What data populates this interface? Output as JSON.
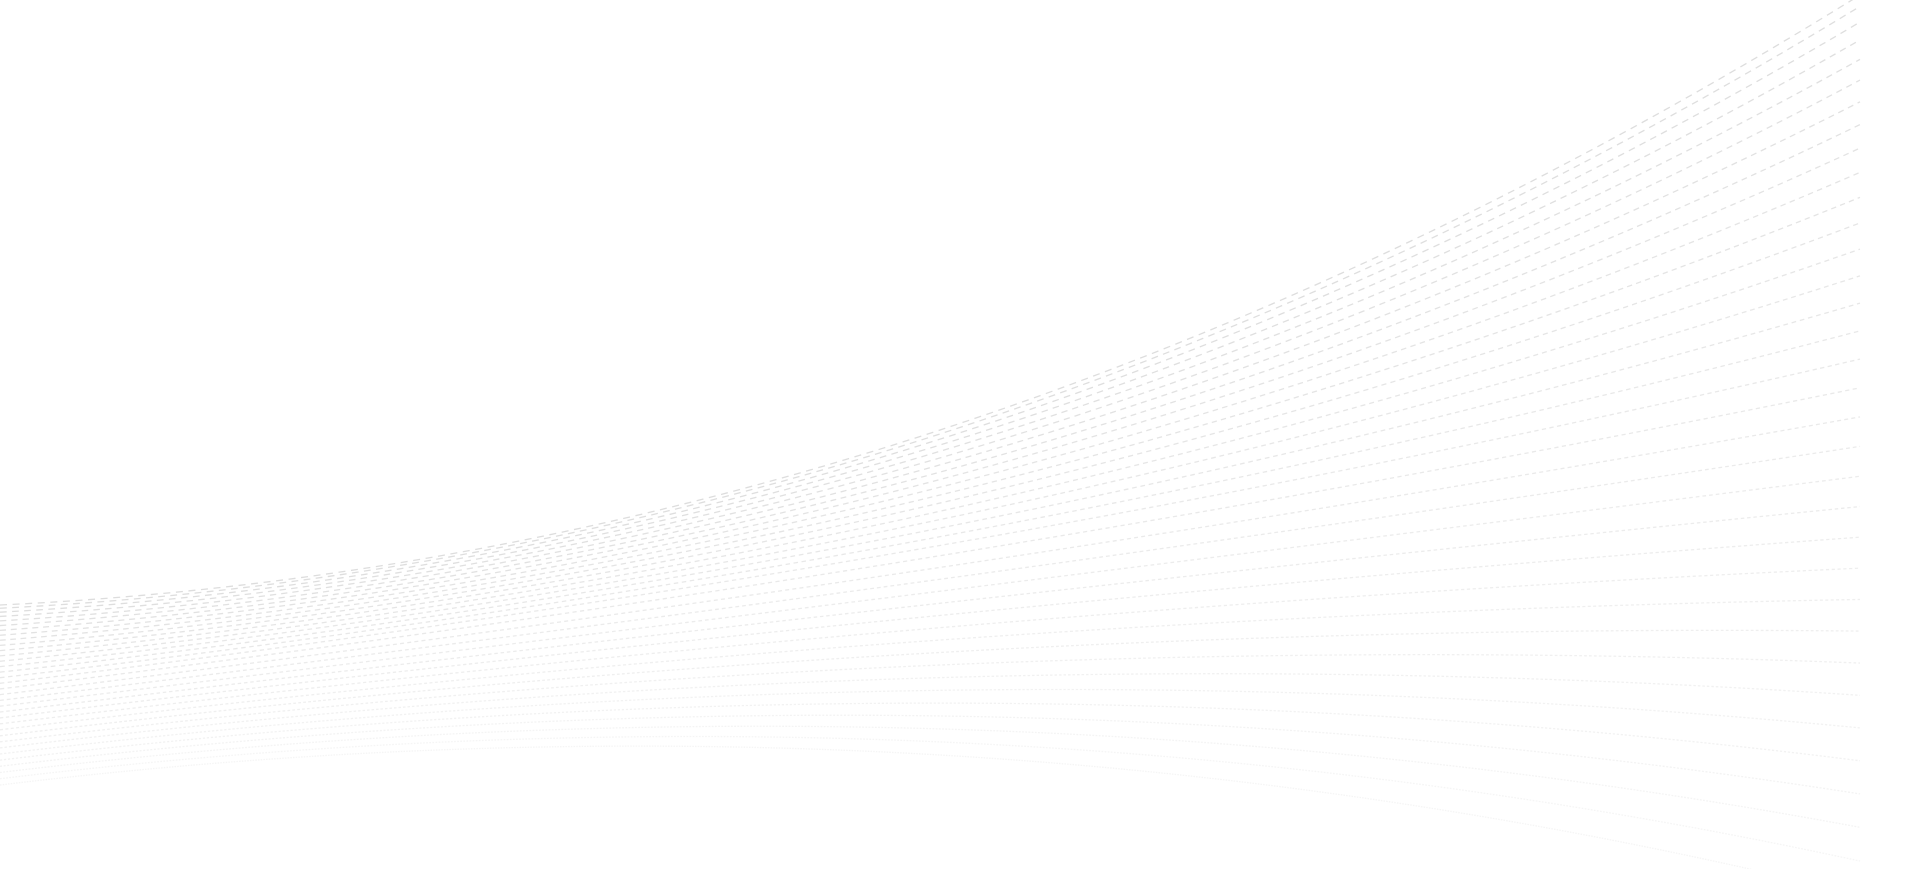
{
  "background": "#ffffff",
  "line_color": "#d9d9d9",
  "pattern": "dashed-wave-lines"
}
